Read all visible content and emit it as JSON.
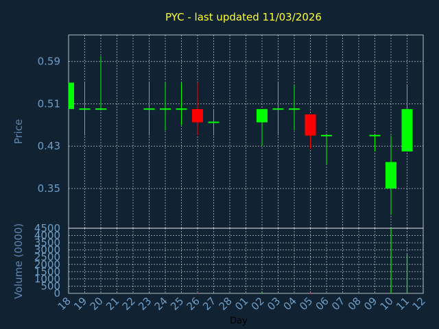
{
  "chart_data": {
    "type": "candlestick",
    "title": "PYC - last updated 11/03/2026",
    "xlabel": "Day",
    "ylabel_price": "Price",
    "ylabel_volume": "Volume (0000)",
    "price_ylim": [
      0.275,
      0.64
    ],
    "price_ticks": [
      "0.59",
      "0.51",
      "0.43",
      "0.35"
    ],
    "volume_ylim": [
      0,
      4500
    ],
    "volume_ticks": [
      "4500",
      "4000",
      "3500",
      "3000",
      "2500",
      "2000",
      "1500",
      "1000",
      "500",
      "0"
    ],
    "grid": true,
    "x_labels": [
      "18",
      "19",
      "20",
      "21",
      "22",
      "23",
      "24",
      "25",
      "26",
      "27",
      "28",
      "01",
      "02",
      "03",
      "04",
      "05",
      "06",
      "07",
      "08",
      "09",
      "10",
      "11",
      "12"
    ],
    "colors": {
      "up": "#00ff00",
      "down": "#ff0000",
      "background": "#112233",
      "title": "#ffff33",
      "grid": "#ffffff",
      "tick_labels": "#6f9ec6"
    },
    "candles": [
      {
        "day": "18",
        "open": 0.5,
        "high": 0.55,
        "low": 0.5,
        "close": 0.55,
        "volume": 0
      },
      {
        "day": "19",
        "open": 0.5,
        "high": 0.55,
        "low": 0.45,
        "close": 0.5,
        "volume": 0
      },
      {
        "day": "20",
        "open": 0.5,
        "high": 0.6,
        "low": 0.5,
        "close": 0.5,
        "volume": 0
      },
      {
        "day": "23",
        "open": 0.5,
        "high": 0.55,
        "low": 0.45,
        "close": 0.5,
        "volume": 60
      },
      {
        "day": "24",
        "open": 0.5,
        "high": 0.55,
        "low": 0.46,
        "close": 0.5,
        "volume": 0
      },
      {
        "day": "25",
        "open": 0.5,
        "high": 0.55,
        "low": 0.47,
        "close": 0.5,
        "volume": 0
      },
      {
        "day": "26",
        "open": 0.5,
        "high": 0.55,
        "low": 0.45,
        "close": 0.475,
        "volume": 50
      },
      {
        "day": "27",
        "open": 0.475,
        "high": 0.5,
        "low": 0.45,
        "close": 0.475,
        "volume": 100
      },
      {
        "day": "02",
        "open": 0.475,
        "high": 0.5,
        "low": 0.43,
        "close": 0.5,
        "volume": 80
      },
      {
        "day": "03",
        "open": 0.5,
        "high": 0.55,
        "low": 0.45,
        "close": 0.5,
        "volume": 0
      },
      {
        "day": "04",
        "open": 0.5,
        "high": 0.545,
        "low": 0.46,
        "close": 0.5,
        "volume": 0
      },
      {
        "day": "05",
        "open": 0.49,
        "high": 0.49,
        "low": 0.425,
        "close": 0.45,
        "volume": 50
      },
      {
        "day": "06",
        "open": 0.45,
        "high": 0.45,
        "low": 0.395,
        "close": 0.45,
        "volume": 0
      },
      {
        "day": "09",
        "open": 0.45,
        "high": 0.45,
        "low": 0.42,
        "close": 0.45,
        "volume": 0
      },
      {
        "day": "10",
        "open": 0.35,
        "high": 0.45,
        "low": 0.3,
        "close": 0.4,
        "volume": 4500
      },
      {
        "day": "11",
        "open": 0.42,
        "high": 0.545,
        "low": 0.42,
        "close": 0.5,
        "volume": 2700
      }
    ]
  }
}
